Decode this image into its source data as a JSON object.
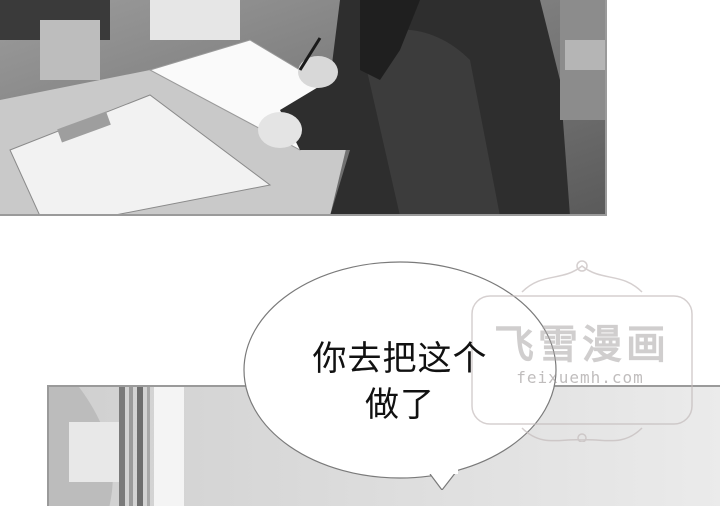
{
  "speech_bubble": {
    "line1": "你去把这个",
    "line2": "做了"
  },
  "watermark": {
    "title": "飞雪漫画",
    "url": "feixuemh.com"
  },
  "colors": {
    "panel_border": "#9a9a9a",
    "bubble_fill": "#ffffff",
    "watermark": "#b0aaaa"
  }
}
